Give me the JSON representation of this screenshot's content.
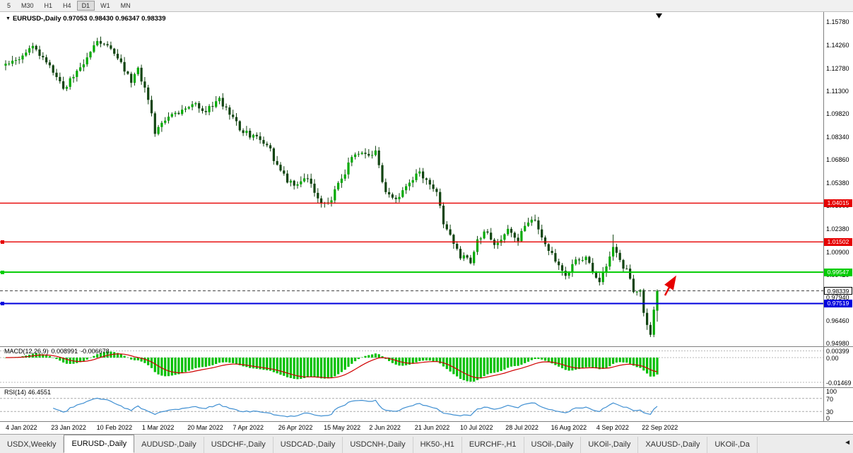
{
  "toolbar": {
    "timeframes": [
      "5",
      "M30",
      "H1",
      "H4",
      "D1",
      "W1",
      "MN"
    ],
    "active": "D1"
  },
  "chart": {
    "title_line": "EURUSD-,Daily 0.97053 0.98430 0.96347 0.98339",
    "symbol": "EURUSD-",
    "period": "Daily",
    "ohlc": {
      "open": "0.97053",
      "high": "0.98430",
      "low": "0.96347",
      "close": "0.98339"
    },
    "price_axis": [
      "1.15780",
      "1.14260",
      "1.12780",
      "1.11300",
      "1.09820",
      "1.08340",
      "1.06860",
      "1.05380",
      "1.03900",
      "1.02380",
      "1.00900",
      "0.99420",
      "0.97940",
      "0.96460",
      "0.94980"
    ],
    "lines": [
      {
        "name": "resistance-upper",
        "price": 1.04015,
        "label": "1.04015",
        "color": "#e60000",
        "width": 1.4,
        "handle": false
      },
      {
        "name": "resistance-lower",
        "price": 1.01502,
        "label": "1.01502",
        "color": "#e60000",
        "width": 1.4,
        "handle": true
      },
      {
        "name": "support-green",
        "price": 0.99547,
        "label": "0.99547",
        "color": "#00cc00",
        "width": 2,
        "handle": true
      },
      {
        "name": "support-blue",
        "price": 0.97519,
        "label": "0.97519",
        "color": "#0000dd",
        "width": 2,
        "handle": true
      }
    ],
    "current_price": {
      "price": 0.98339,
      "label": "0.98339"
    },
    "dates": [
      "4 Jan 2022",
      "23 Jan 2022",
      "10 Feb 2022",
      "1 Mar 2022",
      "20 Mar 2022",
      "7 Apr 2022",
      "26 Apr 2022",
      "15 May 2022",
      "2 Jun 2022",
      "21 Jun 2022",
      "10 Jul 2022",
      "28 Jul 2022",
      "16 Aug 2022",
      "4 Sep 2022",
      "22 Sep 2022"
    ],
    "annotations": {
      "surge_arrow_color": "#e60000",
      "top_marker_color": "#000000"
    }
  },
  "macd": {
    "name": "MACD(12,26,9)",
    "value1": "0.008991",
    "value2": "-0.006678",
    "axis": [
      "0.00399",
      "0.00",
      "-0.01469"
    ]
  },
  "rsi": {
    "label": "RSI(14) 46.4551",
    "axis": [
      "100",
      "70",
      "30",
      "0"
    ],
    "levels": [
      70,
      30
    ]
  },
  "tabs": {
    "items": [
      "USDX,Weekly",
      "EURUSD-,Daily",
      "AUDUSD-,Daily",
      "USDCHF-,Daily",
      "USDCAD-,Daily",
      "USDCNH-,Daily",
      "HK50-,H1",
      "EURCHF-,H1",
      "USOil-,Daily",
      "UKOil-,Daily",
      "XAUUSD-,Daily",
      "UKOil-,Da"
    ],
    "active_index": 1,
    "scroll_left_icon": "◄"
  },
  "chart_data": {
    "type": "candlestick",
    "symbol": "EURUSD",
    "timeframe": "Daily",
    "count": 193,
    "axis": {
      "top_price": 1.1578,
      "bottom_price": 0.9498
    },
    "price_keypoints": [
      [
        0,
        1.129
      ],
      [
        4,
        1.134
      ],
      [
        8,
        1.1415
      ],
      [
        12,
        1.132
      ],
      [
        17,
        1.114
      ],
      [
        20,
        1.123
      ],
      [
        23,
        1.13
      ],
      [
        27,
        1.145
      ],
      [
        30,
        1.143
      ],
      [
        33,
        1.1345
      ],
      [
        37,
        1.119
      ],
      [
        39,
        1.126
      ],
      [
        42,
        1.108
      ],
      [
        44,
        1.086
      ],
      [
        46,
        1.092
      ],
      [
        49,
        1.098
      ],
      [
        53,
        1.1
      ],
      [
        56,
        1.104
      ],
      [
        58,
        1.098
      ],
      [
        63,
        1.1065
      ],
      [
        66,
        1.099
      ],
      [
        69,
        1.088
      ],
      [
        73,
        1.083
      ],
      [
        77,
        1.079
      ],
      [
        80,
        1.064
      ],
      [
        83,
        1.0545
      ],
      [
        86,
        1.052
      ],
      [
        89,
        1.057
      ],
      [
        93,
        1.0395
      ],
      [
        96,
        1.043
      ],
      [
        99,
        1.056
      ],
      [
        102,
        1.069
      ],
      [
        105,
        1.0735
      ],
      [
        107,
        1.07
      ],
      [
        109,
        1.074
      ],
      [
        111,
        1.052
      ],
      [
        114,
        1.043
      ],
      [
        116,
        1.0446
      ],
      [
        119,
        1.055
      ],
      [
        122,
        1.06
      ],
      [
        125,
        1.052
      ],
      [
        127,
        1.0482
      ],
      [
        129,
        1.026
      ],
      [
        131,
        1.018
      ],
      [
        134,
        1.006
      ],
      [
        137,
        1.0019
      ],
      [
        139,
        1.015
      ],
      [
        141,
        1.0225
      ],
      [
        144,
        1.013
      ],
      [
        146,
        1.018
      ],
      [
        148,
        1.022
      ],
      [
        151,
        1.016
      ],
      [
        153,
        1.025
      ],
      [
        156,
        1.0297
      ],
      [
        158,
        1.017
      ],
      [
        160,
        1.009
      ],
      [
        162,
        1.004
      ],
      [
        165,
        0.9927
      ],
      [
        168,
        1.003
      ],
      [
        171,
        1.0054
      ],
      [
        173,
        0.995
      ],
      [
        175,
        0.9903
      ],
      [
        177,
        0.9999
      ],
      [
        179,
        1.012
      ],
      [
        181,
        1.002
      ],
      [
        183,
        0.996
      ],
      [
        185,
        0.984
      ],
      [
        187,
        0.9838
      ],
      [
        188,
        0.969
      ],
      [
        189,
        0.9609
      ],
      [
        190,
        0.956
      ],
      [
        191,
        0.9705
      ],
      [
        192,
        0.98339
      ]
    ],
    "overrides": {
      "179": {
        "high": 1.0198
      },
      "190": {
        "low": 0.9535
      },
      "192": {
        "open": 0.97053,
        "high": 0.9843,
        "low": 0.96347,
        "close": 0.98339
      }
    },
    "indicators": {
      "macd": {
        "fast": 12,
        "slow": 26,
        "signal": 9
      },
      "rsi": {
        "period": 14,
        "last": 46.4551
      }
    },
    "colors": {
      "up": "#00aa00",
      "down": "#114411",
      "wick": "#114411",
      "macd_hist": "#00c000",
      "macd_signal": "#d00000",
      "rsi_line": "#3f8fd2"
    }
  }
}
